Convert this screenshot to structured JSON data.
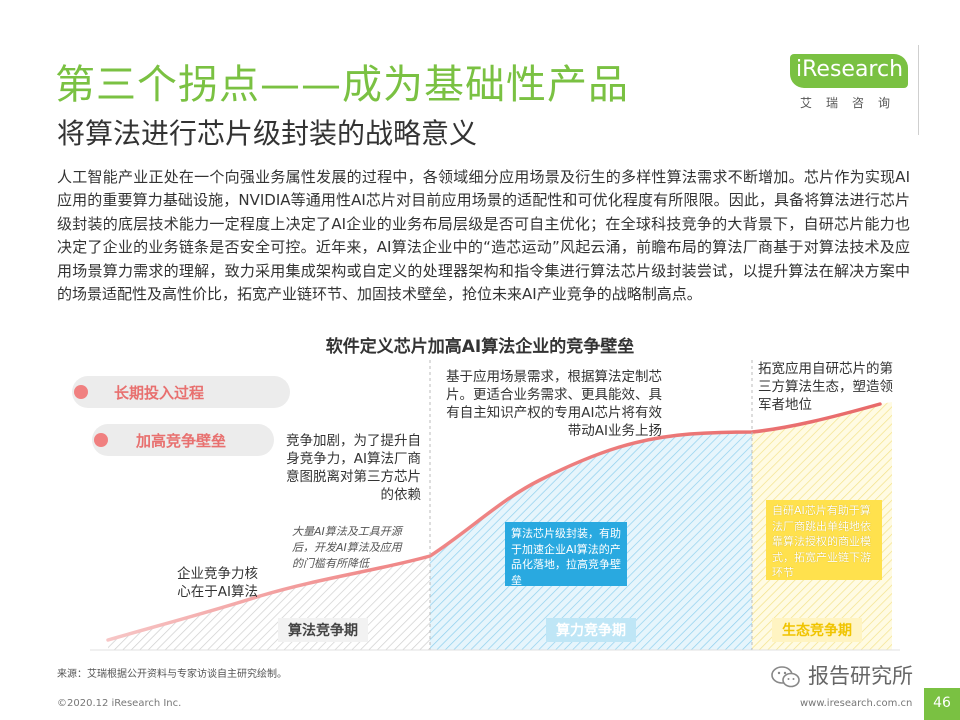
{
  "header": {
    "title": "第三个拐点——成为基础性产品",
    "subtitle": "将算法进行芯片级封装的战略意义"
  },
  "logo": {
    "text": "iResearch",
    "cn": "艾瑞咨询"
  },
  "paragraph": "人工智能产业正处在一个向强业务属性发展的过程中，各领域细分应用场景及衍生的多样性算法需求不断增加。芯片作为实现AI应用的重要算力基础设施，NVIDIA等通用性AI芯片对目前应用场景的适配性和可优化程度有所限限。因此，具备将算法进行芯片级封装的底层技术能力一定程度上决定了AI企业的业务布局层级是否可自主优化；在全球科技竞争的大背景下，自研芯片能力也决定了企业的业务链条是否安全可控。近年来，AI算法企业中的“造芯运动”风起云涌，前瞻布局的算法厂商基于对算法技术及应用场景算力需求的理解，致力采用集成架构或自定义的处理器架构和指令集进行算法芯片级封装尝试，以提升算法在解决方案中的场景适配性及高性价比，拓宽产业链环节、加固技术壁垒，抢位未来AI产业竞争的战略制高点。",
  "diagram": {
    "title": "软件定义芯片加高AI算法企业的竞争壁垒",
    "legend": [
      {
        "label": "长期投入过程"
      },
      {
        "label": "加高竞争壁垒"
      }
    ],
    "annotations": {
      "core": "企业竞争力核心在于AI算法",
      "tools": "大量AI算法及工具开源后，开发AI算法及应用的门槛有所降低",
      "compete": "竞争加剧，为了提升自身竞争力，AI算法厂商意图脱离对第三方芯片的依赖",
      "custom": "基于应用场景需求，根据算法定制芯片。更适合业务需求、更具能效、具有自主知识产权的专用AI芯片将有效带动AI业务上扬",
      "eco": "拓宽应用自研芯片的第三方算法生态，塑造领军者地位"
    },
    "boxes": {
      "blue": "算法芯片级封装，有助于加速企业AI算法的产品化落地，拉高竞争壁垒",
      "yellow": "自研AI芯片有助于算法厂商跳出单纯地依靠算法授权的商业模式，拓宽产业链下游环节"
    },
    "stages": [
      "算法竞争期",
      "算力竞争期",
      "生态竞争期"
    ],
    "colors": {
      "green": "#7ac142",
      "blue": "#29a9e0",
      "yellow": "#ffe14d",
      "red_curve": "#f08a8a",
      "pill_text": "#e8706f"
    }
  },
  "footer": {
    "source": "来源：艾瑞根据公开资料与专家访谈自主研究绘制。",
    "copyright": "©2020.12 iResearch Inc.",
    "url": "www.iresearch.com.cn",
    "page": "46",
    "watermark": "报告研究所"
  }
}
